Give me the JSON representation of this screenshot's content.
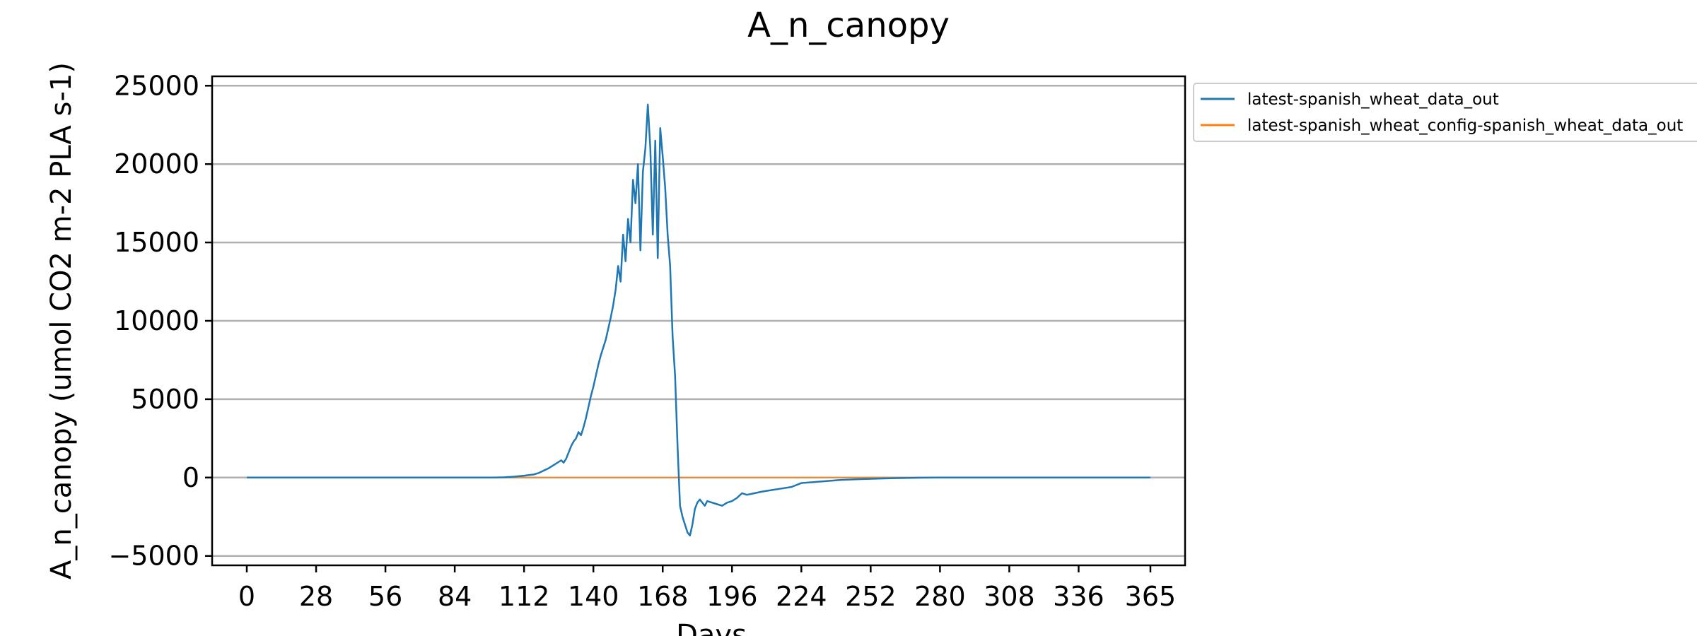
{
  "chart_data": {
    "type": "line",
    "title": "A_n_canopy",
    "xlabel": "Days",
    "ylabel": "A_n_canopy (umol CO2 m-2 PLA s-1)",
    "xlim": [
      -14,
      379
    ],
    "ylim": [
      -5600,
      25600
    ],
    "xticks": [
      0,
      28,
      56,
      84,
      112,
      140,
      168,
      196,
      224,
      252,
      280,
      308,
      336,
      365
    ],
    "yticks": [
      -5000,
      0,
      5000,
      10000,
      15000,
      20000,
      25000
    ],
    "grid": "y",
    "legend_position": "outside-top-right",
    "series": [
      {
        "name": "latest-spanish_wheat_data_out",
        "color": "#1f77b4",
        "points": [
          [
            0,
            0
          ],
          [
            60,
            0
          ],
          [
            100,
            0
          ],
          [
            104,
            20
          ],
          [
            108,
            60
          ],
          [
            112,
            120
          ],
          [
            116,
            200
          ],
          [
            118,
            300
          ],
          [
            120,
            450
          ],
          [
            122,
            600
          ],
          [
            124,
            800
          ],
          [
            126,
            1000
          ],
          [
            127,
            1100
          ],
          [
            128,
            950
          ],
          [
            129,
            1200
          ],
          [
            130,
            1600
          ],
          [
            131,
            2000
          ],
          [
            132,
            2300
          ],
          [
            133,
            2500
          ],
          [
            134,
            2900
          ],
          [
            135,
            2700
          ],
          [
            136,
            3200
          ],
          [
            137,
            3800
          ],
          [
            138,
            4500
          ],
          [
            139,
            5200
          ],
          [
            140,
            5800
          ],
          [
            141,
            6500
          ],
          [
            142,
            7200
          ],
          [
            143,
            7800
          ],
          [
            144,
            8300
          ],
          [
            145,
            8800
          ],
          [
            146,
            9500
          ],
          [
            147,
            10200
          ],
          [
            148,
            11000
          ],
          [
            149,
            12000
          ],
          [
            150,
            13500
          ],
          [
            151,
            12500
          ],
          [
            152,
            15500
          ],
          [
            153,
            13800
          ],
          [
            154,
            16500
          ],
          [
            155,
            15000
          ],
          [
            156,
            19000
          ],
          [
            157,
            17500
          ],
          [
            158,
            20000
          ],
          [
            159,
            14500
          ],
          [
            160,
            19500
          ],
          [
            161,
            21000
          ],
          [
            162,
            23800
          ],
          [
            163,
            21000
          ],
          [
            164,
            15500
          ],
          [
            165,
            21500
          ],
          [
            166,
            14000
          ],
          [
            167,
            22300
          ],
          [
            168,
            20500
          ],
          [
            169,
            18500
          ],
          [
            170,
            15500
          ],
          [
            171,
            13500
          ],
          [
            172,
            9000
          ],
          [
            173,
            6500
          ],
          [
            174,
            2000
          ],
          [
            175,
            -1800
          ],
          [
            176,
            -2500
          ],
          [
            177,
            -3000
          ],
          [
            178,
            -3500
          ],
          [
            179,
            -3700
          ],
          [
            180,
            -3000
          ],
          [
            181,
            -2000
          ],
          [
            182,
            -1600
          ],
          [
            183,
            -1400
          ],
          [
            184,
            -1600
          ],
          [
            185,
            -1800
          ],
          [
            186,
            -1500
          ],
          [
            188,
            -1600
          ],
          [
            190,
            -1700
          ],
          [
            192,
            -1800
          ],
          [
            194,
            -1600
          ],
          [
            196,
            -1500
          ],
          [
            198,
            -1300
          ],
          [
            200,
            -1000
          ],
          [
            202,
            -1100
          ],
          [
            205,
            -1000
          ],
          [
            208,
            -900
          ],
          [
            212,
            -800
          ],
          [
            216,
            -700
          ],
          [
            220,
            -600
          ],
          [
            224,
            -350
          ],
          [
            228,
            -300
          ],
          [
            232,
            -250
          ],
          [
            236,
            -200
          ],
          [
            240,
            -150
          ],
          [
            248,
            -100
          ],
          [
            256,
            -60
          ],
          [
            264,
            -30
          ],
          [
            272,
            -10
          ],
          [
            280,
            0
          ],
          [
            365,
            0
          ]
        ]
      },
      {
        "name": "latest-spanish_wheat_config-spanish_wheat_data_out",
        "color": "#ff7f0e",
        "points": [
          [
            0,
            0
          ],
          [
            365,
            0
          ]
        ]
      }
    ]
  }
}
